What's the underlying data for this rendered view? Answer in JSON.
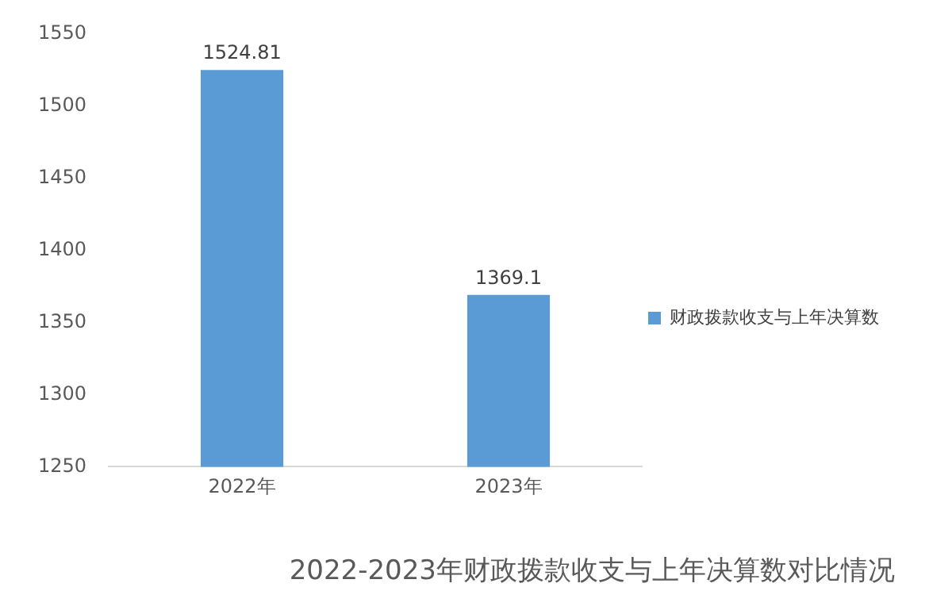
{
  "chart_data": {
    "type": "bar",
    "title": "2022-2023年财政拨款收支与上年决算数对比情况",
    "categories": [
      "2022年",
      "2023年"
    ],
    "series": [
      {
        "name": "财政拨款收支与上年决算数",
        "color": "#5b9bd5",
        "values": [
          1524.81,
          1369.1
        ]
      }
    ],
    "ylim": [
      1250,
      1550
    ],
    "yticks": [
      1250,
      1300,
      1350,
      1400,
      1450,
      1500,
      1550
    ],
    "grid": false,
    "legend": "right",
    "data_labels": true
  }
}
